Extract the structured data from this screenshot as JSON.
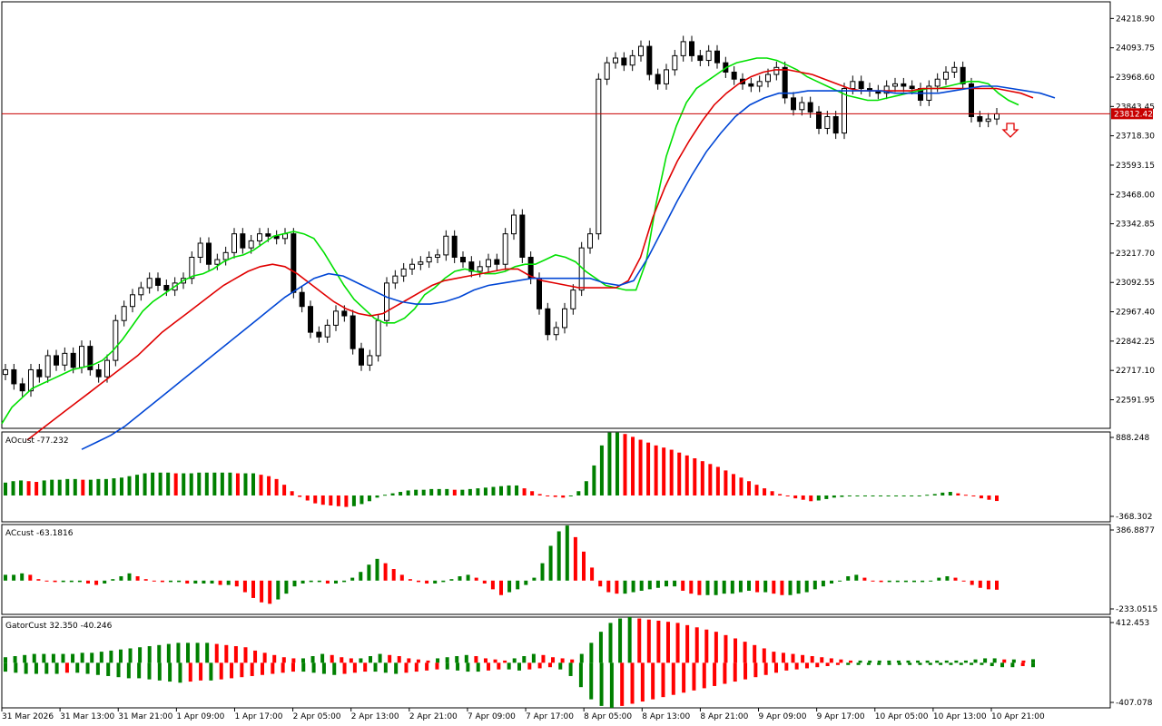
{
  "chart_data": [
    {
      "type": "candlestick",
      "panel": "main",
      "price_line": {
        "value": 23812.42,
        "label": "23812.42",
        "color": "#c80000"
      },
      "y_ticks": [
        "24218.90",
        "24093.75",
        "23968.60",
        "23843.45",
        "23718.30",
        "23593.15",
        "23468.00",
        "23342.85",
        "23217.70",
        "23092.55",
        "22967.40",
        "22842.25",
        "22717.10",
        "22591.95"
      ],
      "y_tick_values": [
        24218.9,
        24093.75,
        23968.6,
        23843.45,
        23718.3,
        23593.15,
        23468.0,
        23342.85,
        23217.7,
        23092.55,
        22967.4,
        22842.25,
        22717.1,
        22591.95
      ],
      "ylim": [
        22470,
        24290
      ],
      "series_colors": {
        "ma_green": "#00e000",
        "ma_red": "#e00000",
        "ma_blue": "#0046d5"
      },
      "signal": {
        "type": "down-arrow",
        "color": "#e00000"
      },
      "candles_close": [
        22720,
        22660,
        22630,
        22720,
        22690,
        22780,
        22740,
        22790,
        22730,
        22820,
        22720,
        22690,
        22760,
        22930,
        22990,
        23040,
        23070,
        23110,
        23080,
        23060,
        23090,
        23110,
        23200,
        23260,
        23170,
        23190,
        23220,
        23300,
        23240,
        23270,
        23300,
        23290,
        23280,
        23300,
        23050,
        22990,
        22880,
        22860,
        22910,
        22970,
        22950,
        22810,
        22740,
        22780,
        22930,
        23090,
        23120,
        23150,
        23170,
        23180,
        23200,
        23210,
        23290,
        23200,
        23180,
        23140,
        23160,
        23190,
        23170,
        23300,
        23380,
        23200,
        23110,
        22980,
        22870,
        22900,
        22980,
        23060,
        23240,
        23300,
        23960,
        24030,
        24050,
        24020,
        24060,
        24100,
        23980,
        23940,
        24000,
        24060,
        24120,
        24060,
        24040,
        24080,
        24030,
        23990,
        23960,
        23940,
        23930,
        23950,
        23980,
        24010,
        23880,
        23830,
        23860,
        23820,
        23750,
        23800,
        23730,
        23920,
        23950,
        23920,
        23910,
        23900,
        23930,
        23940,
        23930,
        23920,
        23870,
        23930,
        23960,
        23990,
        24010,
        23940,
        23800,
        23780,
        23790,
        23812
      ],
      "ma_green_values": [
        22490,
        22560,
        22600,
        22640,
        22660,
        22680,
        22700,
        22720,
        22730,
        22740,
        22760,
        22800,
        22850,
        22910,
        22970,
        23010,
        23040,
        23070,
        23100,
        23120,
        23130,
        23150,
        23180,
        23200,
        23210,
        23230,
        23260,
        23290,
        23300,
        23310,
        23300,
        23280,
        23220,
        23150,
        23080,
        23020,
        22980,
        22940,
        22920,
        22920,
        22940,
        22980,
        23040,
        23070,
        23110,
        23140,
        23150,
        23140,
        23130,
        23130,
        23140,
        23160,
        23170,
        23170,
        23190,
        23210,
        23200,
        23180,
        23140,
        23110,
        23080,
        23070,
        23060,
        23060,
        23180,
        23430,
        23630,
        23760,
        23860,
        23920,
        23950,
        23980,
        24010,
        24030,
        24040,
        24050,
        24050,
        24040,
        24020,
        24000,
        23970,
        23950,
        23930,
        23910,
        23890,
        23880,
        23870,
        23870,
        23880,
        23890,
        23900,
        23910,
        23920,
        23920,
        23930,
        23940,
        23950,
        23950,
        23940,
        23900,
        23870,
        23850
      ],
      "ma_red_values": [
        22420,
        22460,
        22500,
        22540,
        22580,
        22620,
        22660,
        22700,
        22740,
        22780,
        22830,
        22880,
        22920,
        22960,
        23000,
        23040,
        23080,
        23110,
        23140,
        23160,
        23170,
        23160,
        23130,
        23090,
        23050,
        23010,
        22980,
        22960,
        22950,
        22960,
        22990,
        23020,
        23050,
        23080,
        23100,
        23110,
        23120,
        23130,
        23140,
        23150,
        23150,
        23120,
        23100,
        23090,
        23080,
        23070,
        23070,
        23070,
        23070,
        23100,
        23200,
        23370,
        23500,
        23610,
        23700,
        23780,
        23850,
        23900,
        23940,
        23970,
        23990,
        24000,
        24000,
        23990,
        23980,
        23960,
        23940,
        23920,
        23910,
        23910,
        23910,
        23910,
        23910,
        23920,
        23920,
        23920,
        23920,
        23920,
        23920,
        23920,
        23910,
        23900,
        23880
      ],
      "ma_blue_values": [
        22380,
        22410,
        22440,
        22480,
        22530,
        22580,
        22630,
        22680,
        22730,
        22780,
        22830,
        22880,
        22930,
        22980,
        23030,
        23070,
        23110,
        23130,
        23120,
        23090,
        23060,
        23030,
        23010,
        23000,
        23000,
        23010,
        23030,
        23060,
        23080,
        23090,
        23100,
        23110,
        23110,
        23110,
        23110,
        23110,
        23090,
        23080,
        23100,
        23200,
        23320,
        23440,
        23550,
        23650,
        23730,
        23800,
        23850,
        23880,
        23900,
        23900,
        23910,
        23910,
        23910,
        23910,
        23910,
        23910,
        23900,
        23900,
        23900,
        23900,
        23910,
        23920,
        23930,
        23930,
        23920,
        23910,
        23900,
        23880
      ]
    },
    {
      "type": "bar",
      "panel": "oscillator",
      "label": "AOcust -77.232",
      "y_ticks": [
        "888.248",
        "-368.302"
      ],
      "ylim": [
        -368.302,
        888.248
      ],
      "colors": {
        "up": "#008000",
        "down": "#ff0000"
      },
      "values": [
        180,
        200,
        210,
        200,
        190,
        210,
        220,
        220,
        230,
        230,
        220,
        220,
        230,
        230,
        240,
        250,
        270,
        290,
        310,
        320,
        320,
        320,
        310,
        310,
        310,
        320,
        320,
        320,
        320,
        320,
        310,
        310,
        310,
        290,
        270,
        230,
        150,
        60,
        -20,
        -70,
        -110,
        -130,
        -140,
        -150,
        -160,
        -150,
        -120,
        -80,
        -30,
        10,
        30,
        50,
        70,
        80,
        80,
        90,
        90,
        90,
        80,
        80,
        90,
        100,
        110,
        120,
        130,
        140,
        140,
        100,
        60,
        20,
        -10,
        -20,
        -30,
        -10,
        60,
        200,
        420,
        700,
        880,
        880,
        860,
        820,
        780,
        740,
        700,
        670,
        640,
        600,
        560,
        520,
        480,
        440,
        400,
        350,
        300,
        250,
        200,
        150,
        100,
        60,
        20,
        -10,
        -40,
        -60,
        -80,
        -70,
        -50,
        -30,
        -20,
        -10,
        -10,
        -10,
        -10,
        -10,
        -10,
        -10,
        -10,
        -10,
        0,
        10,
        20,
        40,
        50,
        30,
        10,
        -10,
        -40,
        -60,
        -77
      ]
    },
    {
      "type": "bar",
      "panel": "oscillator",
      "label": "ACcust -63.1816",
      "y_ticks": [
        "386.8877",
        "-233.0515"
      ],
      "ylim": [
        -233.0515,
        386.8877
      ],
      "colors": {
        "up": "#008000",
        "down": "#ff0000"
      },
      "values": [
        40,
        40,
        50,
        40,
        10,
        0,
        -10,
        -10,
        -10,
        -10,
        -20,
        -30,
        -20,
        10,
        30,
        50,
        30,
        10,
        0,
        -10,
        -10,
        -10,
        -20,
        -20,
        -20,
        -20,
        -30,
        -30,
        -40,
        -80,
        -120,
        -150,
        -160,
        -130,
        -90,
        -40,
        -20,
        -10,
        -10,
        -20,
        -20,
        -10,
        20,
        60,
        110,
        150,
        120,
        80,
        40,
        10,
        -10,
        -20,
        -20,
        -10,
        10,
        30,
        40,
        20,
        -20,
        -60,
        -100,
        -80,
        -60,
        -30,
        20,
        120,
        240,
        340,
        380,
        300,
        200,
        90,
        -40,
        -80,
        -90,
        -90,
        -80,
        -70,
        -60,
        -50,
        -40,
        -40,
        -70,
        -90,
        -100,
        -100,
        -100,
        -90,
        -90,
        -80,
        -70,
        -80,
        -80,
        -90,
        -100,
        -100,
        -90,
        -80,
        -60,
        -40,
        -20,
        0,
        30,
        40,
        20,
        0,
        -10,
        -10,
        -10,
        -10,
        -10,
        -10,
        0,
        20,
        30,
        20,
        0,
        -30,
        -50,
        -60,
        -63
      ]
    },
    {
      "type": "bar",
      "panel": "oscillator",
      "label": "GatorCust 32.350 -40.246",
      "y_ticks": [
        "412.453",
        "-407.078"
      ],
      "ylim": [
        -407.078,
        412.453
      ],
      "colors": {
        "up": "#008000",
        "down": "#ff0000"
      },
      "upper_values": [
        50,
        60,
        70,
        80,
        80,
        80,
        80,
        80,
        90,
        90,
        100,
        110,
        120,
        130,
        140,
        150,
        160,
        170,
        180,
        180,
        180,
        180,
        170,
        160,
        150,
        140,
        110,
        90,
        70,
        50,
        40,
        40,
        60,
        80,
        70,
        50,
        40,
        40,
        60,
        80,
        70,
        60,
        40,
        30,
        20,
        40,
        50,
        60,
        70,
        60,
        40,
        30,
        20,
        40,
        60,
        80,
        70,
        50,
        40,
        30,
        80,
        180,
        280,
        360,
        400,
        412,
        400,
        390,
        380,
        370,
        360,
        340,
        320,
        300,
        280,
        250,
        220,
        190,
        160,
        130,
        100,
        90,
        80,
        70,
        60,
        50,
        40,
        30,
        20,
        20,
        20,
        20,
        20,
        20,
        20,
        20,
        20,
        20,
        20,
        20,
        20,
        30,
        40,
        40,
        30,
        30,
        20,
        32
      ],
      "lower_values": [
        -80,
        -90,
        -100,
        -100,
        -100,
        -100,
        -90,
        -90,
        -100,
        -110,
        -120,
        -130,
        -140,
        -140,
        -150,
        -160,
        -170,
        -180,
        -170,
        -160,
        -160,
        -150,
        -140,
        -130,
        -120,
        -110,
        -100,
        -90,
        -80,
        -80,
        -90,
        -100,
        -110,
        -100,
        -90,
        -80,
        -80,
        -90,
        -100,
        -90,
        -80,
        -70,
        -60,
        -60,
        -70,
        -80,
        -80,
        -70,
        -60,
        -60,
        -70,
        -60,
        -50,
        -40,
        -60,
        -120,
        -220,
        -330,
        -390,
        -407,
        -390,
        -370,
        -350,
        -330,
        -310,
        -290,
        -270,
        -250,
        -230,
        -210,
        -190,
        -170,
        -150,
        -130,
        -110,
        -90,
        -70,
        -60,
        -50,
        -40,
        -30,
        -20,
        -20,
        -20,
        -20,
        -20,
        -20,
        -20,
        -20,
        -20,
        -20,
        -20,
        -20,
        -20,
        -20,
        -20,
        -30,
        -40,
        -40,
        -30,
        -40
      ],
      "y_ticks_extra": []
    }
  ],
  "x_axis": {
    "labels": [
      "31 Mar 2026",
      "31 Mar 13:00",
      "31 Mar 21:00",
      "1 Apr 09:00",
      "1 Apr 17:00",
      "2 Apr 05:00",
      "2 Apr 13:00",
      "2 Apr 21:00",
      "7 Apr 09:00",
      "7 Apr 17:00",
      "8 Apr 05:00",
      "8 Apr 13:00",
      "8 Apr 21:00",
      "9 Apr 09:00",
      "9 Apr 17:00",
      "10 Apr 05:00",
      "10 Apr 13:00",
      "10 Apr 21:00"
    ]
  },
  "panels": {
    "ao_label": "AOcust -77.232",
    "ac_label": "ACcust -63.1816",
    "gator_label": "GatorCust 32.350 -40.246"
  }
}
